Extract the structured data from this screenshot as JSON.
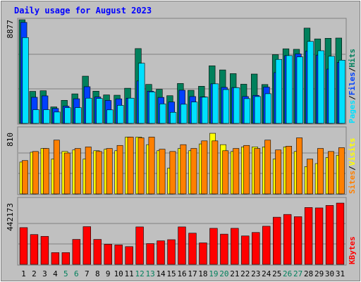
{
  "title": "Daily usage for August 2023",
  "colors": {
    "background": "#c0c0c0",
    "plot_bg": "#c0c0c0",
    "title": "#0000ff",
    "hits": "#00805c",
    "files": "#0040ff",
    "pages": "#00e0ff",
    "visits": "#ffff00",
    "sites": "#ff8000",
    "kbytes": "#ff0000",
    "weekend_day": "#00805c",
    "weekday": "#000000",
    "grid": "#808080"
  },
  "chart_data": {
    "type": "bar",
    "title": "Daily usage for August 2023",
    "days": [
      "1",
      "2",
      "3",
      "4",
      "5",
      "6",
      "7",
      "8",
      "9",
      "10",
      "11",
      "12",
      "13",
      "14",
      "15",
      "16",
      "17",
      "18",
      "19",
      "20",
      "21",
      "22",
      "23",
      "24",
      "25",
      "26",
      "27",
      "28",
      "29",
      "30",
      "31"
    ],
    "weekend_days": [
      "5",
      "6",
      "12",
      "13",
      "19",
      "20",
      "26",
      "27"
    ],
    "panels": [
      {
        "name": "hits_files_pages",
        "ymax_label": "8877",
        "ymax": 8877,
        "legend": [
          {
            "label": "Pages",
            "color": "#00e0ff"
          },
          {
            "label": "/",
            "color": "#000000"
          },
          {
            "label": "Files",
            "color": "#0040ff"
          },
          {
            "label": "/",
            "color": "#000000"
          },
          {
            "label": "Hits",
            "color": "#00805c"
          }
        ],
        "series": [
          {
            "name": "Hits",
            "color": "#00805c",
            "values": [
              8877,
              2744,
              2797,
              1410,
              1975,
              2529,
              4045,
              2757,
              2440,
              2414,
              3011,
              6407,
              3339,
              2915,
              2372,
              3419,
              2836,
              3180,
              4933,
              4580,
              4263,
              3356,
              4227,
              3329,
              5888,
              6389,
              6345,
              8160,
              7236,
              7290,
              7309
            ]
          },
          {
            "name": "Files",
            "color": "#0040ff",
            "values": [
              8650,
              2236,
              2358,
              1280,
              1475,
              2108,
              3143,
              2262,
              1962,
              2103,
              2157,
              3634,
              2760,
              2227,
              1834,
              2842,
              2300,
              2270,
              3390,
              3086,
              3073,
              2300,
              2400,
              3111,
              4350,
              5807,
              5950,
              6200,
              5850,
              4650,
              5232
            ]
          },
          {
            "name": "Pages",
            "color": "#00e0ff",
            "values": [
              7350,
              1175,
              1175,
              975,
              1345,
              1352,
              2160,
              2136,
              1160,
              1545,
              2160,
              5152,
              2700,
              1670,
              950,
              1640,
              1830,
              2248,
              3390,
              2897,
              3060,
              2120,
              2300,
              2542,
              5481,
              5805,
              5697,
              7020,
              6223,
              5750,
              5416
            ]
          }
        ]
      },
      {
        "name": "sites_visits",
        "ymax_label": "810",
        "ymax": 810,
        "legend": [
          {
            "label": "Sites",
            "color": "#ff8000"
          },
          {
            "label": "/",
            "color": "#000000"
          },
          {
            "label": "Visits",
            "color": "#ffff00"
          }
        ],
        "series": [
          {
            "name": "Visits",
            "color": "#ffff00",
            "values": [
              420,
              550,
              600,
              460,
              560,
              580,
              460,
              570,
              590,
              570,
              750,
              750,
              650,
              570,
              340,
              600,
              570,
              660,
              800,
              650,
              560,
              620,
              620,
              620,
              460,
              620,
              560,
              360,
              400,
              480,
              510
            ]
          },
          {
            "name": "Sites",
            "color": "#ff8000",
            "values": [
              440,
              560,
              600,
              710,
              540,
              600,
              620,
              560,
              600,
              640,
              750,
              740,
              750,
              590,
              560,
              650,
              600,
              700,
              700,
              570,
              600,
              640,
              600,
              710,
              580,
              630,
              740,
              460,
              600,
              560,
              610
            ]
          }
        ]
      },
      {
        "name": "kbytes",
        "ymax_label": "442173",
        "ymax": 442173,
        "legend": [
          {
            "label": "KBytes",
            "color": "#ff0000"
          }
        ],
        "series": [
          {
            "name": "KBytes",
            "color": "#ff0000",
            "values": [
              265000,
              215000,
              202000,
              85000,
              85000,
              180000,
              272000,
              180000,
              145000,
              140000,
              128000,
              270000,
              150000,
              170000,
              178000,
              270000,
              225000,
              155000,
              260000,
              218000,
              260000,
              205000,
              230000,
              275000,
              340000,
              360000,
              344000,
              410000,
              407000,
              425000,
              442000
            ]
          }
        ]
      }
    ]
  }
}
